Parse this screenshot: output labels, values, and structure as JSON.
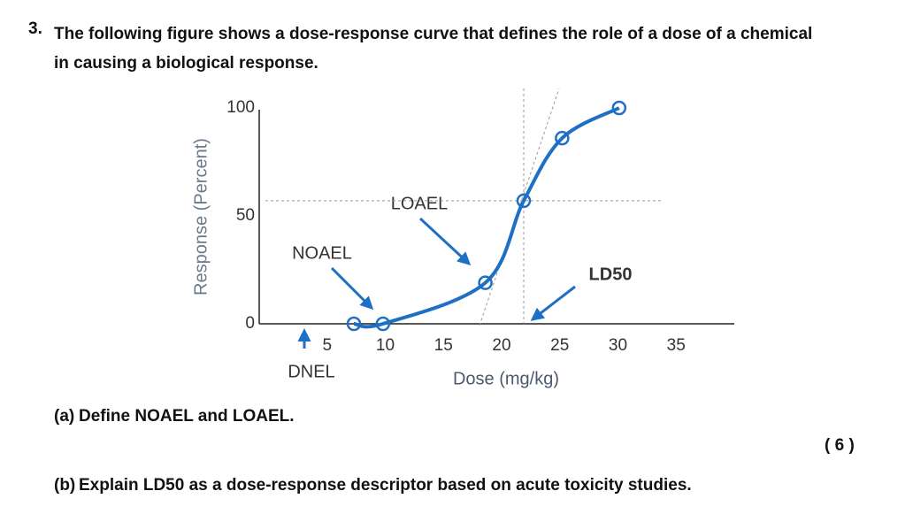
{
  "question": {
    "number": "3.",
    "text": "The following figure shows a dose-response curve that defines the role of a dose of a chemical in causing a biological response."
  },
  "chart_data": {
    "type": "line",
    "xlabel": "Dose (mg/kg)",
    "ylabel": "Response (Percent)",
    "x": [
      7.3,
      9.8,
      18.6,
      21.9,
      25.2,
      30.1
    ],
    "values": [
      0,
      0,
      19,
      57,
      86,
      100
    ],
    "color": "#1f6fc5",
    "xlim": [
      0,
      40
    ],
    "ylim": [
      0,
      100
    ],
    "xticks": [
      5,
      10,
      15,
      20,
      25,
      30,
      35
    ],
    "yticks": [
      0,
      50,
      100
    ],
    "annotations": [
      "NOAEL",
      "LOAEL",
      "LD50",
      "DNEL"
    ]
  },
  "parts": [
    {
      "label": "(a)",
      "text": "Define NOAEL and LOAEL."
    },
    {
      "label": "(b)",
      "text": "Explain LD50 as a dose-response descriptor based on acute toxicity studies."
    }
  ],
  "marks": "( 6 )"
}
